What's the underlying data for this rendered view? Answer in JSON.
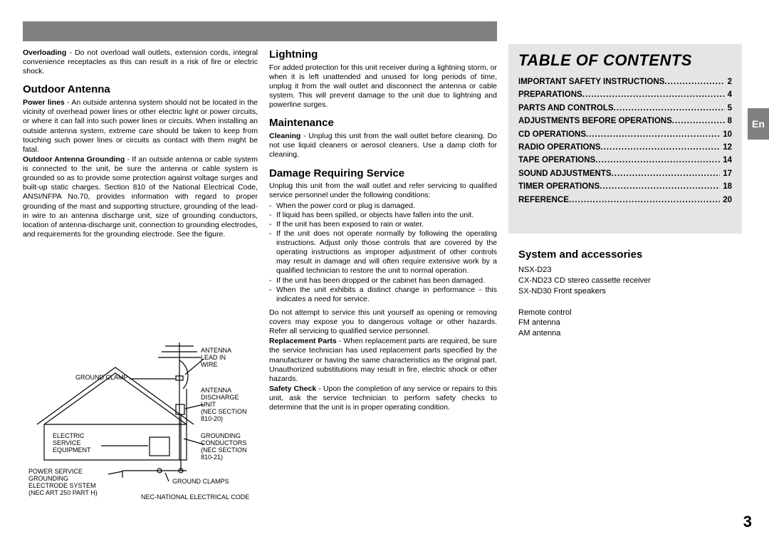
{
  "header_bar_color": "#808080",
  "tab": {
    "label": "En",
    "bg": "#808080",
    "fg": "#ffffff"
  },
  "page_number": "3",
  "col1": {
    "overloading_label": "Overloading",
    "overloading_text": " - Do not overload wall outlets, extension cords, integral convenience receptacles as this can result in a risk of fire or electric shock.",
    "outdoor_heading": "Outdoor Antenna",
    "powerlines_label": "Power lines",
    "powerlines_text": " - An outside antenna system should not be located in the vicinity of overhead power lines or other electric light or power circuits, or where it can fall into such power lines or circuits. When installing an outside antenna system, extreme care should be taken to keep from touching such power lines or circuits as contact with them might be fatal.",
    "grounding_label": "Outdoor Antenna Grounding",
    "grounding_text": " - If an outside antenna or cable system is connected to the unit, be sure the antenna or cable system is grounded so as to provide some protection against voltage surges and built-up static charges. Section 810 of the National Electrical Code, ANSI/NFPA No.70, provides information with regard to proper grounding of the mast and supporting structure, grounding of the lead-in wire to an antenna discharge unit, size of grounding conductors, location of antenna-discharge unit, connection to grounding electrodes, and requirements for the grounding electrode. See the    figure."
  },
  "col2": {
    "lightning_heading": "Lightning",
    "lightning_text": "For added protection for this unit receiver during a lightning storm, or when it is left unattended and unused for long periods of time, unplug it from the wall outlet and disconnect the antenna or cable system. This will prevent damage to the unit due to lightning and powerline surges.",
    "maintenance_heading": "Maintenance",
    "cleaning_label": "Cleaning",
    "cleaning_text": " - Unplug this unit from the wall outlet before cleaning. Do not use liquid cleaners or aerosol cleaners. Use a damp cloth for cleaning.",
    "damage_heading": "Damage Requiring Service",
    "damage_intro": "Unplug this unit from the wall outlet and refer servicing to qualified service personnel under the following conditions:",
    "damage_items": [
      "When the power cord or plug is damaged.",
      "If liquid has been spilled, or objects have fallen into the unit.",
      "If the unit has been exposed to rain or water.",
      "If the unit does not operate normally by following the operating instructions. Adjust only those controls that are covered by the operating instructions as improper adjustment of other controls may result in damage and will often require extensive work by a qualified technician to restore the unit to normal operation.",
      "If the unit has been dropped or the cabinet has been damaged.",
      "When the unit exhibits a distinct change in performance - this indicates a need for service."
    ],
    "noservice_text": "Do not attempt to service this unit yourself as opening or removing covers may expose you to dangerous voltage or other hazards. Refer all servicing to qualified service personnel.",
    "replacement_label": "Replacement Parts",
    "replacement_text": " - When replacement parts are required, be sure the service technician has used replacement parts specified by the manufacturer or having the same characteristics as the original part. Unauthorized substitutions may result in fire, electric shock or other hazards.",
    "safety_label": "Safety Check",
    "safety_text": " - Upon the completion of any service or repairs to this unit, ask the service technician to perform safety checks to determine that the unit is in proper operating condition."
  },
  "toc": {
    "title": "TABLE OF CONTENTS",
    "bg": "#e5e5e5",
    "items": [
      {
        "label": "IMPORTANT SAFETY INSTRUCTIONS",
        "page": "2"
      },
      {
        "label": "PREPARATIONS",
        "page": "4"
      },
      {
        "label": "PARTS AND CONTROLS",
        "page": "5"
      },
      {
        "label": "ADJUSTMENTS BEFORE OPERATIONS",
        "page": "8"
      },
      {
        "label": "CD OPERATIONS",
        "page": "10"
      },
      {
        "label": "RADIO OPERATIONS",
        "page": "12"
      },
      {
        "label": "TAPE OPERATIONS",
        "page": "14"
      },
      {
        "label": "SOUND ADJUSTMENTS",
        "page": "17"
      },
      {
        "label": "TIMER OPERATIONS",
        "page": "18"
      },
      {
        "label": "REFERENCE",
        "page": "20"
      }
    ]
  },
  "system": {
    "heading": "System and accessories",
    "lines": [
      "NSX-D23",
      "CX-ND23 CD stereo cassette receiver",
      "SX-ND30 Front speakers",
      "",
      "Remote control",
      "FM antenna",
      "AM antenna"
    ]
  },
  "diagram": {
    "stroke": "#000000",
    "labels": {
      "antenna_lead": "ANTENNA\nLEAD IN\nWIRE",
      "ground_clamp_top": "GROUND CLAMP",
      "antenna_discharge": "ANTENNA\nDISCHARGE\nUNIT\n(NEC SECTION\n810-20)",
      "electric_service": "ELECTRIC\nSERVICE\nEQUIPMENT",
      "grounding_conductors": "GROUNDING\nCONDUCTORS\n(NEC SECTION\n810-21)",
      "power_service": "POWER SERVICE\nGROUNDING\nELECTRODE SYSTEM\n(NEC ART 250 PART H)",
      "ground_clamps_bottom": "GROUND CLAMPS",
      "nec_code": "NEC-NATIONAL ELECTRICAL CODE"
    }
  }
}
